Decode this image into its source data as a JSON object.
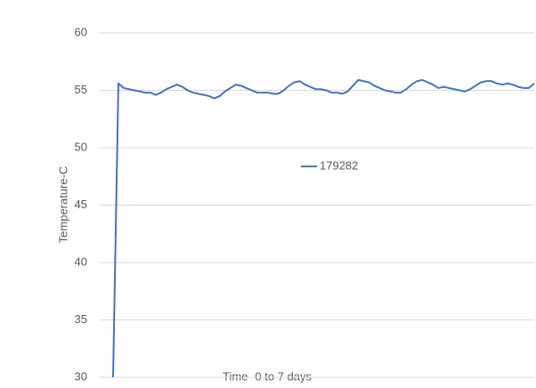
{
  "chart_data": {
    "type": "line",
    "x_label": "Time -0 to 7 days",
    "y_label": "Temperature-C",
    "categories": [
      null,
      null,
      null,
      null,
      null,
      null,
      null,
      null,
      null,
      null,
      null,
      null,
      null,
      null,
      null,
      null,
      null,
      null,
      null,
      null,
      null,
      null,
      null,
      null,
      null,
      null,
      null,
      null,
      null,
      null,
      null,
      null,
      null,
      null,
      null,
      null,
      null,
      null,
      null,
      null,
      null,
      null,
      null,
      null,
      null,
      null,
      null,
      null,
      null,
      null,
      null,
      null,
      null,
      null,
      null,
      null,
      null,
      null,
      null,
      null,
      null,
      null,
      null,
      null,
      null,
      null,
      null,
      null,
      null,
      null,
      null,
      null,
      null,
      null,
      null,
      null,
      null,
      null,
      null,
      null
    ],
    "series": [
      {
        "name": "179282",
        "color": "#4472c4",
        "values": [
          30,
          55.6,
          55.2,
          55.1,
          55.0,
          54.9,
          54.8,
          54.8,
          54.6,
          54.8,
          55.1,
          55.3,
          55.5,
          55.3,
          55.0,
          54.8,
          54.7,
          54.6,
          54.5,
          54.3,
          54.5,
          54.9,
          55.2,
          55.5,
          55.4,
          55.2,
          55.0,
          54.8,
          54.8,
          54.8,
          54.7,
          54.7,
          55.0,
          55.4,
          55.7,
          55.8,
          55.5,
          55.3,
          55.1,
          55.1,
          55.0,
          54.8,
          54.8,
          54.7,
          54.9,
          55.4,
          55.9,
          55.8,
          55.7,
          55.4,
          55.2,
          55.0,
          54.9,
          54.8,
          54.8,
          55.1,
          55.5,
          55.8,
          55.9,
          55.7,
          55.5,
          55.2,
          55.3,
          55.2,
          55.1,
          55.0,
          54.9,
          55.1,
          55.4,
          55.7,
          55.8,
          55.8,
          55.6,
          55.5,
          55.6,
          55.5,
          55.3,
          55.2,
          55.2,
          55.6
        ]
      }
    ],
    "ylim": [
      30,
      60
    ],
    "yticks": [
      30,
      35,
      40,
      45,
      50,
      55,
      60
    ],
    "grid": true,
    "legend": "center"
  }
}
